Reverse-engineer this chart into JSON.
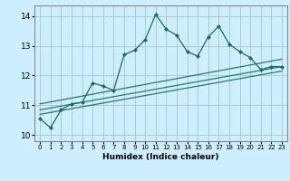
{
  "title": "",
  "xlabel": "Humidex (Indice chaleur)",
  "ylabel": "",
  "bg_color": "#cceeff",
  "grid_color": "#aacccc",
  "line_color": "#1a6b5a",
  "xlim": [
    -0.5,
    23.5
  ],
  "ylim": [
    9.8,
    14.35
  ],
  "xticks": [
    0,
    1,
    2,
    3,
    4,
    5,
    6,
    7,
    8,
    9,
    10,
    11,
    12,
    13,
    14,
    15,
    16,
    17,
    18,
    19,
    20,
    21,
    22,
    23
  ],
  "yticks": [
    10,
    11,
    12,
    13,
    14
  ],
  "main_x": [
    0,
    1,
    2,
    3,
    4,
    5,
    6,
    7,
    8,
    9,
    10,
    11,
    12,
    13,
    14,
    15,
    16,
    17,
    18,
    19,
    20,
    21,
    22,
    23
  ],
  "main_y": [
    10.55,
    10.25,
    10.85,
    11.05,
    11.1,
    11.75,
    11.65,
    11.5,
    12.7,
    12.85,
    13.2,
    14.05,
    13.55,
    13.35,
    12.8,
    12.65,
    13.3,
    13.65,
    13.05,
    12.8,
    12.6,
    12.2,
    12.3,
    12.3
  ],
  "reg_lines": [
    {
      "x": [
        0,
        23
      ],
      "y": [
        11.05,
        12.55
      ]
    },
    {
      "x": [
        0,
        23
      ],
      "y": [
        10.85,
        12.3
      ]
    },
    {
      "x": [
        0,
        23
      ],
      "y": [
        10.7,
        12.15
      ]
    }
  ],
  "spine_color": "#888888"
}
